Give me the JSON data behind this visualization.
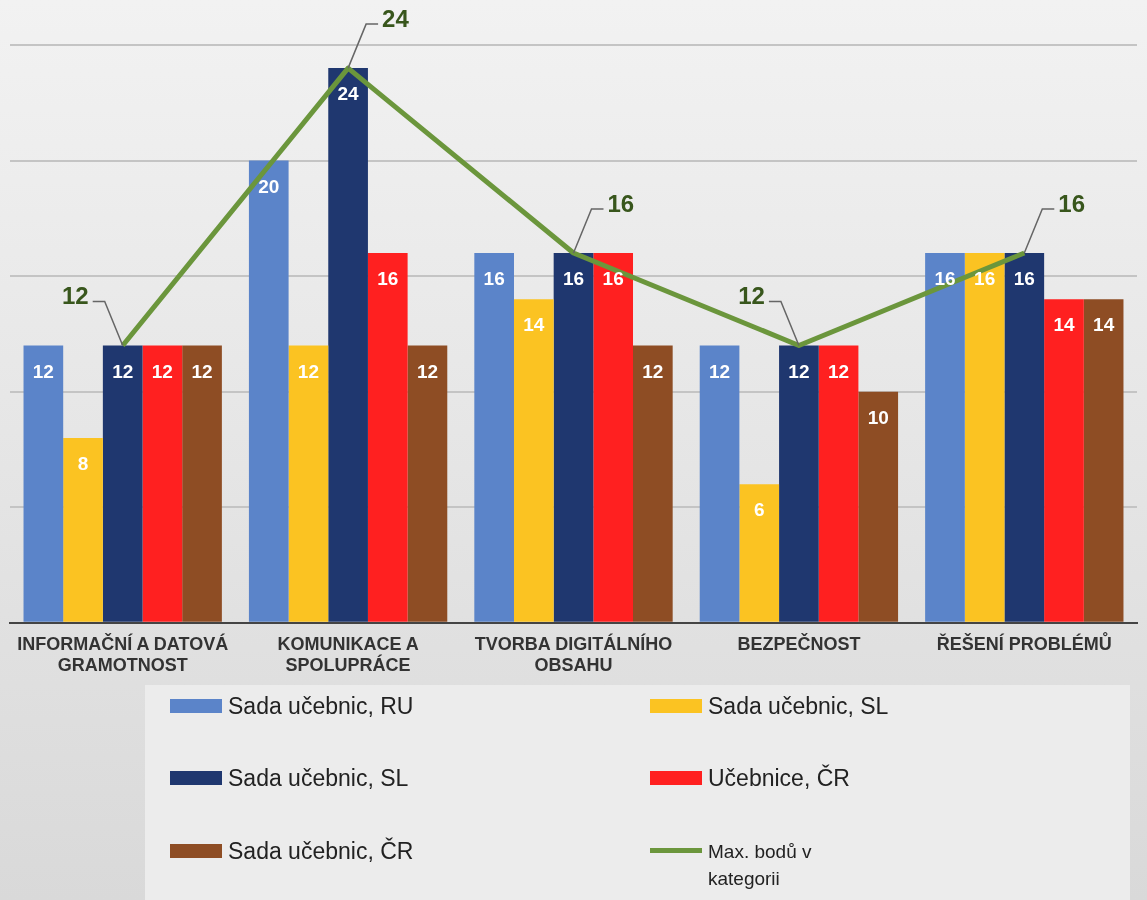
{
  "chart_data": {
    "type": "bar",
    "categories": [
      "INFORMAČNÍ A DATOVÁ GRAMOTNOST",
      "KOMUNIKACE A SPOLUPRÁCE",
      "TVORBA DIGITÁLNÍHO OBSAHU",
      "BEZPEČNOST",
      "ŘEŠENÍ PROBLÉMŮ"
    ],
    "series": [
      {
        "name": "Sada učebnic, RU",
        "color": "#5b84c9",
        "values": [
          12,
          20,
          16,
          12,
          16
        ]
      },
      {
        "name": "Sada učebnic, SL",
        "color": "#fbc322",
        "values": [
          8,
          12,
          14,
          6,
          16
        ]
      },
      {
        "name": "Sada učebnic, SL",
        "color": "#1f376f",
        "values": [
          12,
          24,
          16,
          12,
          16
        ]
      },
      {
        "name": "Učebnice, ČR",
        "color": "#ff2020",
        "values": [
          12,
          16,
          16,
          12,
          14
        ]
      },
      {
        "name": "Sada učebnic, ČR",
        "color": "#8e4d24",
        "values": [
          12,
          12,
          12,
          10,
          14
        ]
      },
      {
        "name": "Max. bodů v kategorii",
        "type": "line",
        "color": "#6b963c",
        "values": [
          12,
          24,
          16,
          12,
          16
        ]
      }
    ],
    "ylim": [
      0,
      25
    ],
    "yticks": [
      0,
      5,
      10,
      15,
      20,
      25
    ],
    "tick_labels": "x",
    "grid": "y",
    "legend": "bottom",
    "data_labels": true,
    "marker": "none"
  }
}
